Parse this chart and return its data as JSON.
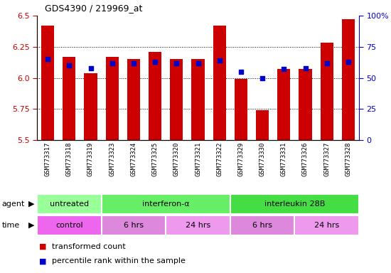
{
  "title": "GDS4390 / 219969_at",
  "samples": [
    "GSM773317",
    "GSM773318",
    "GSM773319",
    "GSM773323",
    "GSM773324",
    "GSM773325",
    "GSM773320",
    "GSM773321",
    "GSM773322",
    "GSM773329",
    "GSM773330",
    "GSM773331",
    "GSM773326",
    "GSM773327",
    "GSM773328"
  ],
  "transformed_counts": [
    6.42,
    6.17,
    6.04,
    6.17,
    6.15,
    6.21,
    6.15,
    6.15,
    6.42,
    5.99,
    5.74,
    6.07,
    6.07,
    6.28,
    6.47
  ],
  "percentile_ranks": [
    65,
    60,
    58,
    62,
    62,
    63,
    62,
    62,
    64,
    55,
    50,
    57,
    58,
    62,
    63
  ],
  "ylim_left": [
    5.5,
    6.5
  ],
  "ylim_right": [
    0,
    100
  ],
  "yticks_left": [
    5.5,
    5.75,
    6.0,
    6.25,
    6.5
  ],
  "yticks_right": [
    0,
    25,
    50,
    75,
    100
  ],
  "bar_color": "#CC0000",
  "percentile_color": "#0000CC",
  "bg_color": "#FFFFFF",
  "agent_groups": [
    {
      "label": "untreated",
      "start": 0,
      "end": 2,
      "color": "#99FF99"
    },
    {
      "label": "interferon-α",
      "start": 3,
      "end": 8,
      "color": "#66EE66"
    },
    {
      "label": "interleukin 28B",
      "start": 9,
      "end": 14,
      "color": "#44DD44"
    }
  ],
  "time_groups": [
    {
      "label": "control",
      "start": 0,
      "end": 2,
      "color": "#EE66EE"
    },
    {
      "label": "6 hrs",
      "start": 3,
      "end": 5,
      "color": "#DD88DD"
    },
    {
      "label": "24 hrs",
      "start": 6,
      "end": 8,
      "color": "#EE99EE"
    },
    {
      "label": "6 hrs",
      "start": 9,
      "end": 11,
      "color": "#DD88DD"
    },
    {
      "label": "24 hrs",
      "start": 12,
      "end": 14,
      "color": "#EE99EE"
    }
  ],
  "legend_items": [
    {
      "label": "transformed count",
      "color": "#CC0000"
    },
    {
      "label": "percentile rank within the sample",
      "color": "#0000CC"
    }
  ]
}
